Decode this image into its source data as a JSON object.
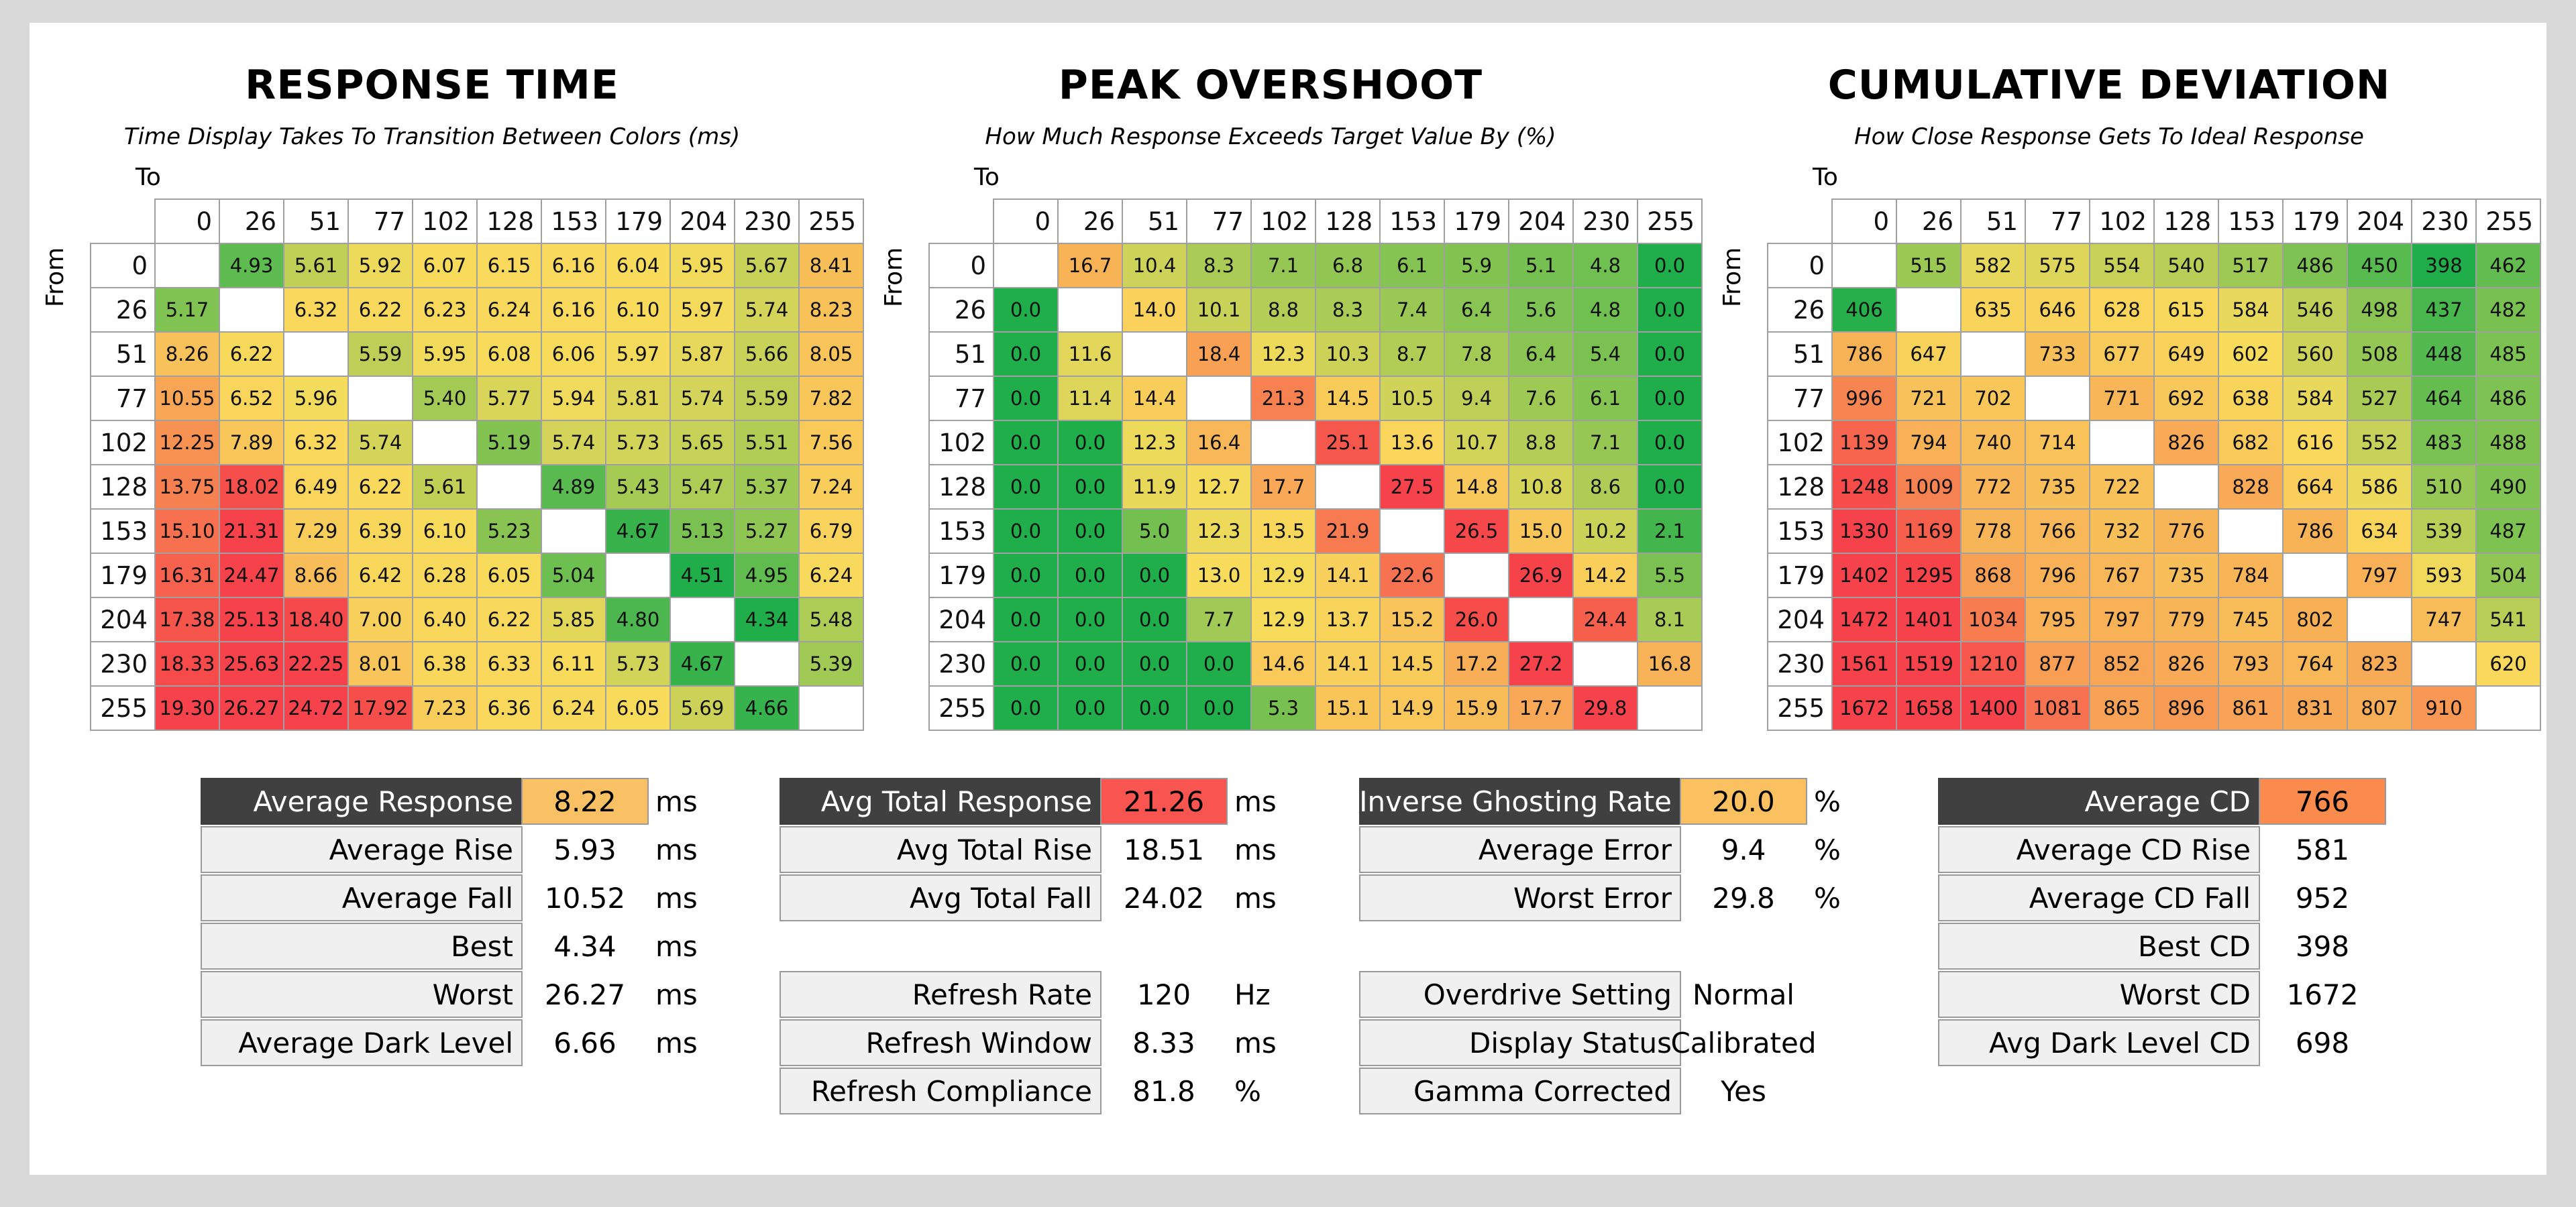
{
  "chart_data": [
    {
      "type": "heatmap",
      "title": "RESPONSE TIME",
      "subtitle": "Time Display Takes To Transition Between Colors (ms)",
      "xlabel": "To",
      "ylabel": "From",
      "levels": [
        0,
        26,
        51,
        77,
        102,
        128,
        153,
        179,
        204,
        230,
        255
      ],
      "values": [
        [
          null,
          4.93,
          5.61,
          5.92,
          6.07,
          6.15,
          6.16,
          6.04,
          5.95,
          5.67,
          8.41
        ],
        [
          5.17,
          null,
          6.32,
          6.22,
          6.23,
          6.24,
          6.16,
          6.1,
          5.97,
          5.74,
          8.23
        ],
        [
          8.26,
          6.22,
          null,
          5.59,
          5.95,
          6.08,
          6.06,
          5.97,
          5.87,
          5.66,
          8.05
        ],
        [
          10.55,
          6.52,
          5.96,
          null,
          5.4,
          5.77,
          5.94,
          5.81,
          5.74,
          5.59,
          7.82
        ],
        [
          12.25,
          7.89,
          6.32,
          5.74,
          null,
          5.19,
          5.74,
          5.73,
          5.65,
          5.51,
          7.56
        ],
        [
          13.75,
          18.02,
          6.49,
          6.22,
          5.61,
          null,
          4.89,
          5.43,
          5.47,
          5.37,
          7.24
        ],
        [
          15.1,
          21.31,
          7.29,
          6.39,
          6.1,
          5.23,
          null,
          4.67,
          5.13,
          5.27,
          6.79
        ],
        [
          16.31,
          24.47,
          8.66,
          6.42,
          6.28,
          6.05,
          5.04,
          null,
          4.51,
          4.95,
          6.24
        ],
        [
          17.38,
          25.13,
          18.4,
          7.0,
          6.4,
          6.22,
          5.85,
          4.8,
          null,
          4.34,
          5.48
        ],
        [
          18.33,
          25.63,
          22.25,
          8.01,
          6.38,
          6.33,
          6.11,
          5.73,
          4.67,
          null,
          5.39
        ],
        [
          19.3,
          26.27,
          24.72,
          17.92,
          7.23,
          6.36,
          6.24,
          6.05,
          5.69,
          4.66,
          null
        ]
      ],
      "decimals": 2
    },
    {
      "type": "heatmap",
      "title": "PEAK OVERSHOOT",
      "subtitle": "How Much Response Exceeds Target Value By (%)",
      "xlabel": "To",
      "ylabel": "From",
      "levels": [
        0,
        26,
        51,
        77,
        102,
        128,
        153,
        179,
        204,
        230,
        255
      ],
      "values": [
        [
          null,
          16.7,
          10.4,
          8.3,
          7.1,
          6.8,
          6.1,
          5.9,
          5.1,
          4.8,
          0.0
        ],
        [
          0.0,
          null,
          14.0,
          10.1,
          8.8,
          8.3,
          7.4,
          6.4,
          5.6,
          4.8,
          0.0
        ],
        [
          0.0,
          11.6,
          null,
          18.4,
          12.3,
          10.3,
          8.7,
          7.8,
          6.4,
          5.4,
          0.0
        ],
        [
          0.0,
          11.4,
          14.4,
          null,
          21.3,
          14.5,
          10.5,
          9.4,
          7.6,
          6.1,
          0.0
        ],
        [
          0.0,
          0.0,
          12.3,
          16.4,
          null,
          25.1,
          13.6,
          10.7,
          8.8,
          7.1,
          0.0
        ],
        [
          0.0,
          0.0,
          11.9,
          12.7,
          17.7,
          null,
          27.5,
          14.8,
          10.8,
          8.6,
          0.0
        ],
        [
          0.0,
          0.0,
          5.0,
          12.3,
          13.5,
          21.9,
          null,
          26.5,
          15.0,
          10.2,
          2.1
        ],
        [
          0.0,
          0.0,
          0.0,
          13.0,
          12.9,
          14.1,
          22.6,
          null,
          26.9,
          14.2,
          5.5
        ],
        [
          0.0,
          0.0,
          0.0,
          7.7,
          12.9,
          13.7,
          15.2,
          26.0,
          null,
          24.4,
          8.1
        ],
        [
          0.0,
          0.0,
          0.0,
          0.0,
          14.6,
          14.1,
          14.5,
          17.2,
          27.2,
          null,
          16.8
        ],
        [
          0.0,
          0.0,
          0.0,
          0.0,
          5.3,
          15.1,
          14.9,
          15.9,
          17.7,
          29.8,
          null
        ]
      ],
      "decimals": 1
    },
    {
      "type": "heatmap",
      "title": "CUMULATIVE DEVIATION",
      "subtitle": "How Close Response Gets To Ideal Response",
      "xlabel": "To",
      "ylabel": "From",
      "levels": [
        0,
        26,
        51,
        77,
        102,
        128,
        153,
        179,
        204,
        230,
        255
      ],
      "values": [
        [
          null,
          515,
          582,
          575,
          554,
          540,
          517,
          486,
          450,
          398,
          462
        ],
        [
          406,
          null,
          635,
          646,
          628,
          615,
          584,
          546,
          498,
          437,
          482
        ],
        [
          786,
          647,
          null,
          733,
          677,
          649,
          602,
          560,
          508,
          448,
          485
        ],
        [
          996,
          721,
          702,
          null,
          771,
          692,
          638,
          584,
          527,
          464,
          486
        ],
        [
          1139,
          794,
          740,
          714,
          null,
          826,
          682,
          616,
          552,
          483,
          488
        ],
        [
          1248,
          1009,
          772,
          735,
          722,
          null,
          828,
          664,
          586,
          510,
          490
        ],
        [
          1330,
          1169,
          778,
          766,
          732,
          776,
          null,
          786,
          634,
          539,
          487
        ],
        [
          1402,
          1295,
          868,
          796,
          767,
          735,
          784,
          null,
          797,
          593,
          504
        ],
        [
          1472,
          1401,
          1034,
          795,
          797,
          779,
          745,
          802,
          null,
          747,
          541
        ],
        [
          1561,
          1519,
          1210,
          877,
          852,
          826,
          793,
          764,
          823,
          null,
          620
        ],
        [
          1672,
          1658,
          1400,
          1081,
          865,
          896,
          861,
          831,
          807,
          910,
          null
        ]
      ],
      "decimals": 0
    }
  ],
  "stats": [
    {
      "rows": [
        {
          "label": "Average Response",
          "value": "8.22",
          "unit": "ms",
          "highlight": true,
          "color": "#f9c064"
        },
        {
          "label": "Average Rise",
          "value": "5.93",
          "unit": "ms"
        },
        {
          "label": "Average Fall",
          "value": "10.52",
          "unit": "ms"
        },
        {
          "label": "Best",
          "value": "4.34",
          "unit": "ms"
        },
        {
          "label": "Worst",
          "value": "26.27",
          "unit": "ms"
        },
        {
          "label": "Average Dark Level",
          "value": "6.66",
          "unit": "ms"
        }
      ]
    },
    {
      "rows": [
        {
          "label": "Avg Total Response",
          "value": "21.26",
          "unit": "ms",
          "highlight": true,
          "color": "#f85450"
        },
        {
          "label": "Avg Total Rise",
          "value": "18.51",
          "unit": "ms"
        },
        {
          "label": "Avg Total Fall",
          "value": "24.02",
          "unit": "ms"
        },
        null,
        {
          "label": "Refresh Rate",
          "value": "120",
          "unit": "Hz"
        },
        {
          "label": "Refresh Window",
          "value": "8.33",
          "unit": "ms"
        },
        {
          "label": "Refresh Compliance",
          "value": "81.8",
          "unit": "%"
        }
      ]
    },
    {
      "rows": [
        {
          "label": "Inverse Ghosting Rate",
          "value": "20.0",
          "unit": "%",
          "highlight": true,
          "color": "#fbc060"
        },
        {
          "label": "Average Error",
          "value": "9.4",
          "unit": "%"
        },
        {
          "label": "Worst Error",
          "value": "29.8",
          "unit": "%"
        },
        null,
        {
          "label": "Overdrive Setting",
          "value": "Normal",
          "unit": ""
        },
        {
          "label": "Display Status",
          "value": "Calibrated",
          "unit": ""
        },
        {
          "label": "Gamma Corrected",
          "value": "Yes",
          "unit": ""
        }
      ]
    },
    {
      "rows": [
        {
          "label": "Average CD",
          "value": "766",
          "unit": "",
          "highlight": true,
          "color": "#fb8b4c"
        },
        {
          "label": "Average CD Rise",
          "value": "581",
          "unit": ""
        },
        {
          "label": "Average CD Fall",
          "value": "952",
          "unit": ""
        },
        {
          "label": "Best CD",
          "value": "398",
          "unit": ""
        },
        {
          "label": "Worst CD",
          "value": "1672",
          "unit": ""
        },
        {
          "label": "Avg Dark Level CD",
          "value": "698",
          "unit": ""
        }
      ]
    }
  ],
  "colors": {
    "good": "#1fae4a",
    "mid": "#f9dc5c",
    "bad": "#f6424a",
    "header_dark": "#404040"
  }
}
